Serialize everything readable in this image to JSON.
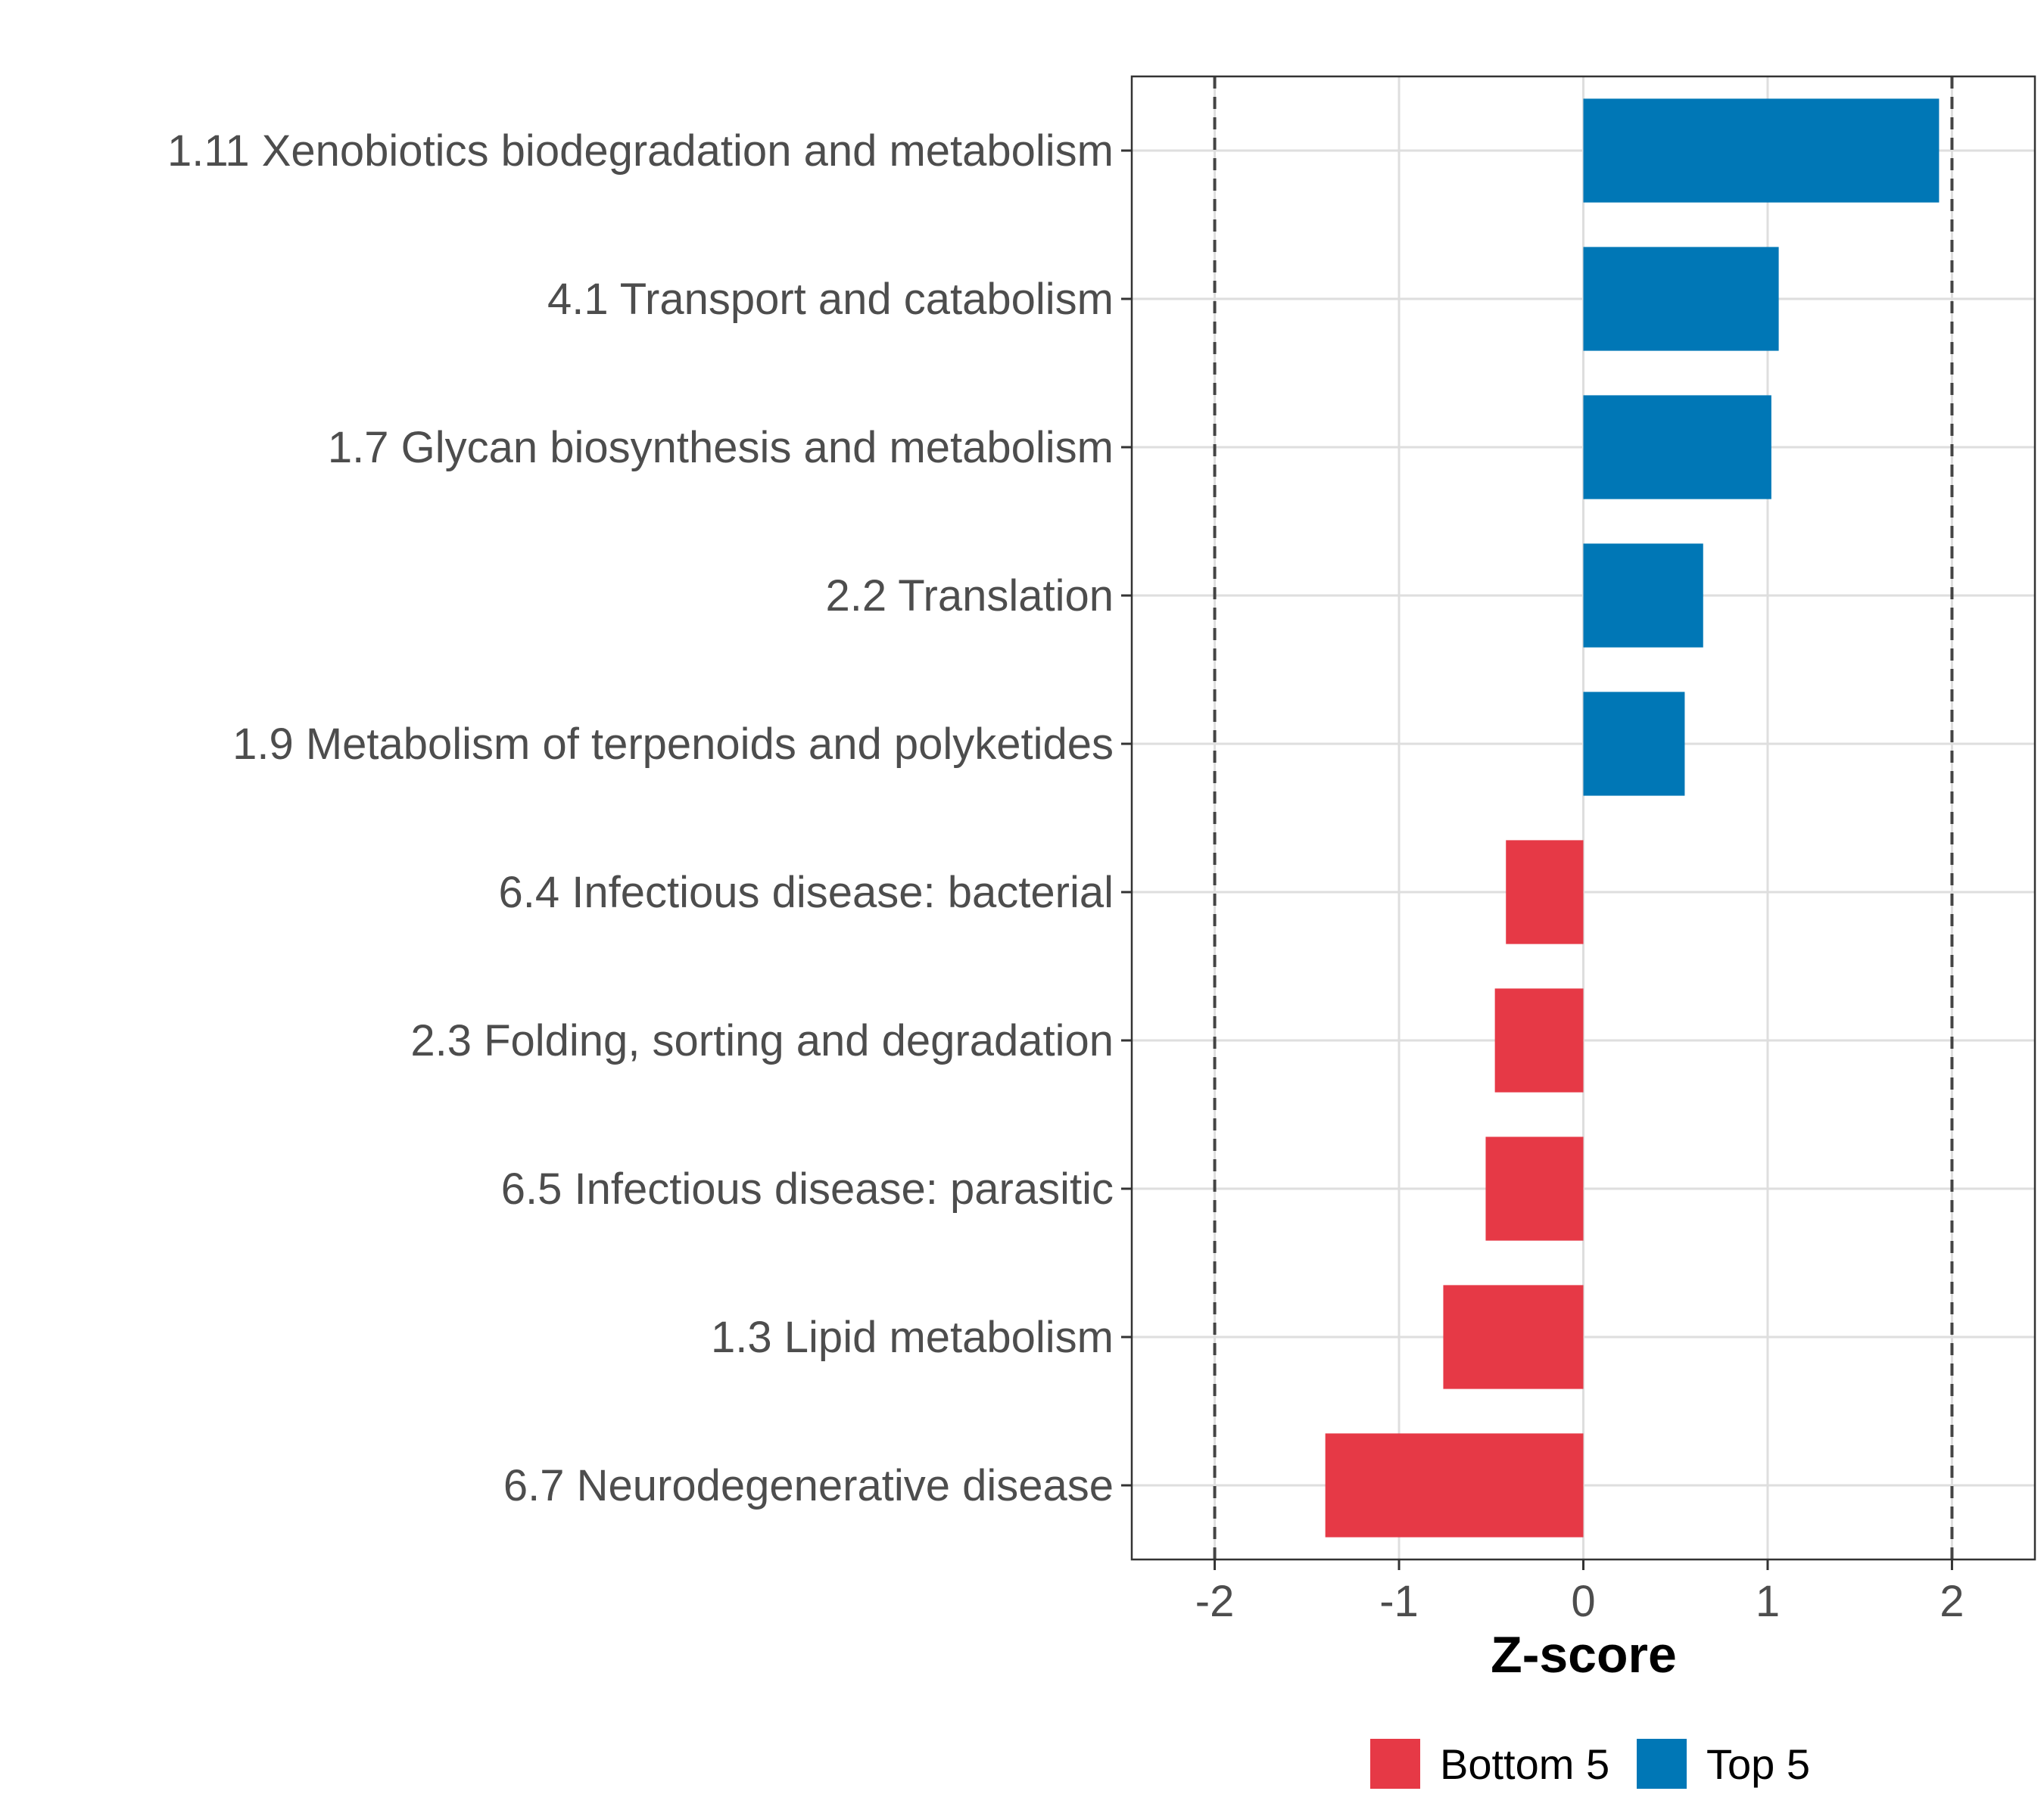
{
  "chart_data": {
    "type": "bar",
    "orientation": "horizontal",
    "categories": [
      "1.11 Xenobiotics biodegradation and metabolism",
      "4.1 Transport and catabolism",
      "1.7 Glycan biosynthesis and metabolism",
      "2.2 Translation",
      "1.9 Metabolism of terpenoids and polyketides",
      "6.4 Infectious disease: bacterial",
      "2.3 Folding, sorting and degradation",
      "6.5 Infectious disease: parasitic",
      "1.3 Lipid metabolism",
      "6.7 Neurodegenerative disease"
    ],
    "values": [
      1.93,
      1.06,
      1.02,
      0.65,
      0.55,
      -0.42,
      -0.48,
      -0.53,
      -0.76,
      -1.4
    ],
    "groups": [
      "Top 5",
      "Top 5",
      "Top 5",
      "Top 5",
      "Top 5",
      "Bottom 5",
      "Bottom 5",
      "Bottom 5",
      "Bottom 5",
      "Bottom 5"
    ],
    "xlabel": "Z-score",
    "xlim": [
      -2.45,
      2.45
    ],
    "xticks": [
      -2,
      -1,
      0,
      1,
      2
    ],
    "xtick_labels": [
      "-2",
      "-1",
      "0",
      "1",
      "2"
    ],
    "reference_lines": [
      -2,
      2
    ],
    "grid": true,
    "legend": {
      "position": "bottom",
      "entries": [
        {
          "label": "Bottom 5",
          "color": "#e63946"
        },
        {
          "label": "Top 5",
          "color": "#0077b6"
        }
      ]
    }
  },
  "colors": {
    "Bottom 5": "#e63946",
    "Top 5": "#0077b6"
  }
}
